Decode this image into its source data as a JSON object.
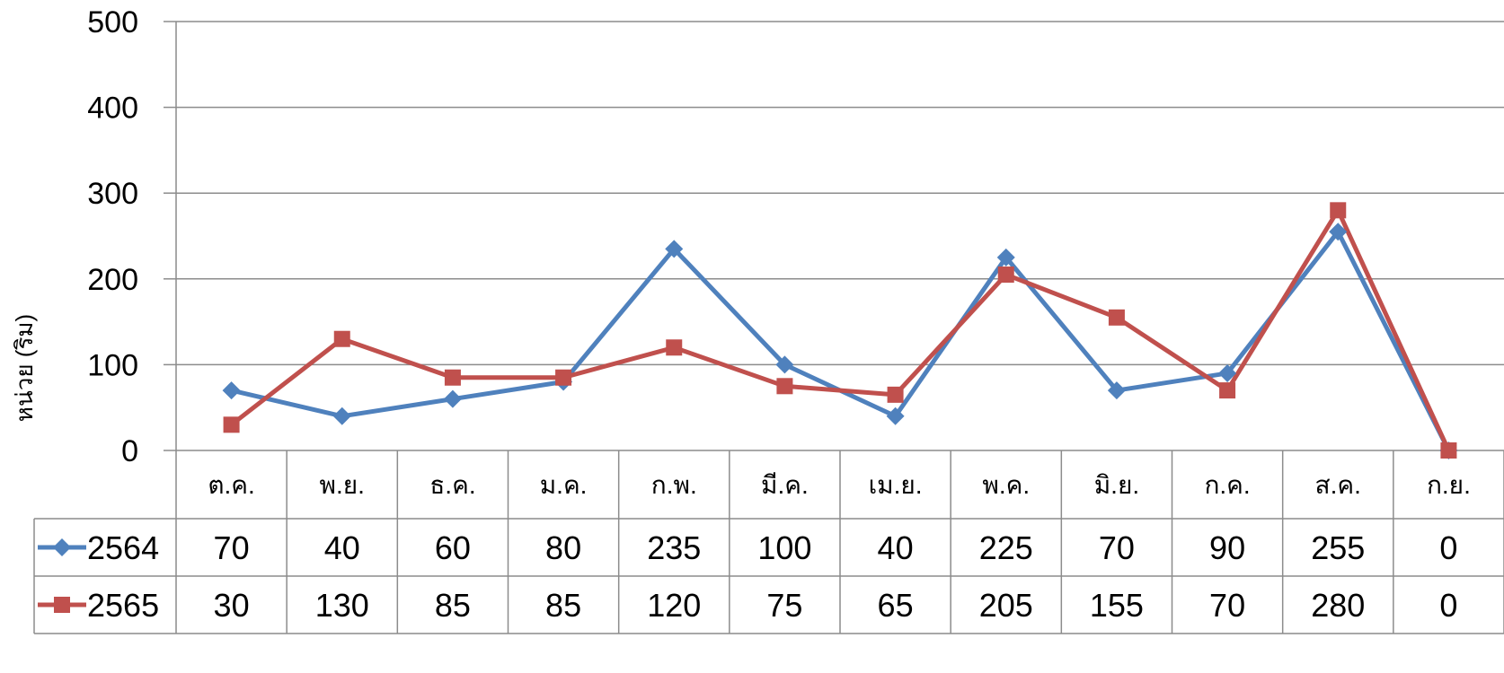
{
  "chart_data": {
    "type": "line",
    "ylabel": "หน่วย (ริม)",
    "ylim": [
      0,
      500
    ],
    "yticks": [
      0,
      100,
      200,
      300,
      400,
      500
    ],
    "grid": true,
    "legend": "data-table-left",
    "categories": [
      "ต.ค.",
      "พ.ย.",
      "ธ.ค.",
      "ม.ค.",
      "ก.พ.",
      "มี.ค.",
      "เม.ย.",
      "พ.ค.",
      "มิ.ย.",
      "ก.ค.",
      "ส.ค.",
      "ก.ย."
    ],
    "series": [
      {
        "name": "2564",
        "color": "#4f81bd",
        "marker": "diamond",
        "values": [
          70,
          40,
          60,
          80,
          235,
          100,
          40,
          225,
          70,
          90,
          255,
          0
        ]
      },
      {
        "name": "2565",
        "color": "#c0504d",
        "marker": "square",
        "values": [
          30,
          130,
          85,
          85,
          120,
          75,
          65,
          205,
          155,
          70,
          280,
          0
        ]
      }
    ]
  }
}
